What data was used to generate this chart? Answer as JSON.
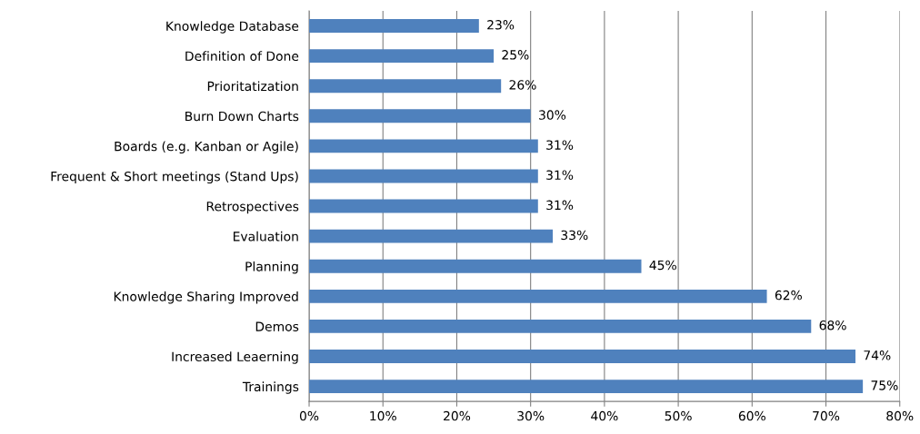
{
  "chart_data": {
    "type": "bar",
    "orientation": "horizontal",
    "categories": [
      "Knowledge Database",
      "Definition of Done",
      "Prioritatization",
      "Burn Down Charts",
      "Boards (e.g. Kanban or Agile)",
      "Frequent & Short meetings (Stand Ups)",
      "Retrospectives",
      "Evaluation",
      "Planning",
      "Knowledge Sharing Improved",
      "Demos",
      "Increased Leaerning",
      "Trainings"
    ],
    "values": [
      23,
      25,
      26,
      30,
      31,
      31,
      31,
      33,
      45,
      62,
      68,
      74,
      75
    ],
    "value_labels": [
      "23%",
      "25%",
      "26%",
      "30%",
      "31%",
      "31%",
      "31%",
      "33%",
      "45%",
      "62%",
      "68%",
      "74%",
      "75%"
    ],
    "color": "#4f81bd",
    "xlim": [
      0,
      80
    ],
    "xticks": [
      {
        "value": 0,
        "label": "0%"
      },
      {
        "value": 10,
        "label": "10%"
      },
      {
        "value": 20,
        "label": "20%"
      },
      {
        "value": 30,
        "label": "30%"
      },
      {
        "value": 40,
        "label": "40%"
      },
      {
        "value": 50,
        "label": "50%"
      },
      {
        "value": 60,
        "label": "60%"
      },
      {
        "value": 70,
        "label": "70%"
      },
      {
        "value": 80,
        "label": "80%"
      }
    ],
    "grid": "x"
  }
}
